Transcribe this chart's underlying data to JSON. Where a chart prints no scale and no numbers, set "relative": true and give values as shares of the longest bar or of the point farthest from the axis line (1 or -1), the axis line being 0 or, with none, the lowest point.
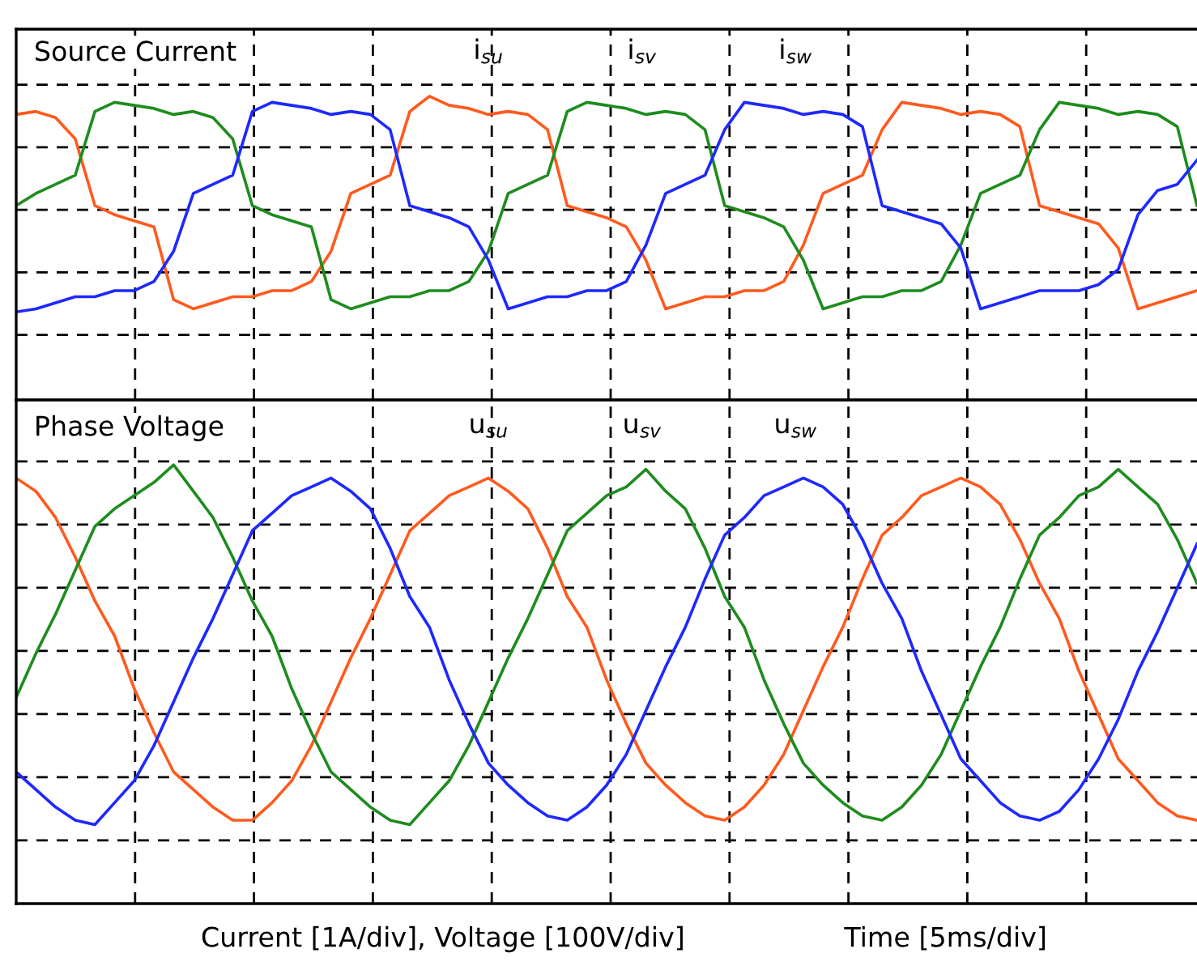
{
  "chart_data": [
    {
      "type": "line",
      "title": "Source Current",
      "relative": true,
      "grid": true,
      "tick_labels": false,
      "categories": [
        null,
        null,
        null,
        null,
        null,
        null,
        null,
        null,
        null,
        null,
        null,
        null,
        null,
        null,
        null,
        null,
        null,
        null,
        null,
        null,
        null,
        null,
        null,
        null,
        null,
        null,
        null,
        null,
        null,
        null,
        null,
        null,
        null,
        null,
        null,
        null,
        null,
        null,
        null,
        null,
        null,
        null,
        null,
        null,
        null,
        null,
        null,
        null,
        null,
        null,
        null,
        null,
        null,
        null,
        null,
        null,
        null,
        null,
        null,
        null,
        null
      ],
      "series": [
        {
          "name": "i$_{su}$",
          "color": "#ff5a1e",
          "values": [
            0.94,
            0.95,
            0.93,
            0.86,
            0.64,
            0.61,
            0.59,
            0.57,
            0.33,
            0.3,
            0.32,
            0.34,
            0.34,
            0.36,
            0.36,
            0.39,
            0.49,
            0.68,
            0.71,
            0.74,
            0.95,
            1.0,
            0.97,
            0.96,
            0.94,
            0.95,
            0.94,
            0.89,
            0.64,
            0.62,
            0.6,
            0.57,
            0.46,
            0.3,
            0.32,
            0.34,
            0.34,
            0.36,
            0.36,
            0.39,
            0.51,
            0.68,
            0.71,
            0.74,
            0.89,
            0.98,
            0.97,
            0.96,
            0.94,
            0.95,
            0.94,
            0.9,
            0.64,
            0.62,
            0.6,
            0.58,
            0.5,
            0.3,
            0.32,
            0.34,
            0.36
          ]
        },
        {
          "name": "i$_{sv}$",
          "color": "#1e8c1e",
          "values": [
            0.64,
            0.68,
            0.71,
            0.74,
            0.95,
            0.98,
            0.97,
            0.96,
            0.94,
            0.95,
            0.93,
            0.86,
            0.64,
            0.61,
            0.59,
            0.57,
            0.33,
            0.3,
            0.32,
            0.34,
            0.34,
            0.36,
            0.36,
            0.39,
            0.49,
            0.68,
            0.71,
            0.74,
            0.95,
            0.98,
            0.97,
            0.96,
            0.94,
            0.95,
            0.94,
            0.89,
            0.64,
            0.62,
            0.6,
            0.57,
            0.46,
            0.3,
            0.32,
            0.34,
            0.34,
            0.36,
            0.36,
            0.39,
            0.51,
            0.68,
            0.71,
            0.74,
            0.89,
            0.98,
            0.97,
            0.96,
            0.94,
            0.95,
            0.94,
            0.9,
            0.64
          ]
        },
        {
          "name": "i$_{sw}$",
          "color": "#1e28ff",
          "values": [
            0.29,
            0.3,
            0.32,
            0.34,
            0.34,
            0.36,
            0.36,
            0.39,
            0.49,
            0.68,
            0.71,
            0.74,
            0.95,
            0.98,
            0.97,
            0.96,
            0.94,
            0.95,
            0.94,
            0.89,
            0.64,
            0.62,
            0.6,
            0.57,
            0.46,
            0.3,
            0.32,
            0.34,
            0.34,
            0.36,
            0.36,
            0.39,
            0.51,
            0.68,
            0.71,
            0.74,
            0.89,
            0.98,
            0.97,
            0.96,
            0.94,
            0.95,
            0.94,
            0.9,
            0.64,
            0.62,
            0.6,
            0.58,
            0.5,
            0.3,
            0.32,
            0.34,
            0.36,
            0.36,
            0.36,
            0.38,
            0.43,
            0.61,
            0.69,
            0.71,
            0.79
          ]
        }
      ]
    },
    {
      "type": "line",
      "title": "Phase Voltage",
      "relative": true,
      "grid": true,
      "tick_labels": false,
      "categories": [
        null,
        null,
        null,
        null,
        null,
        null,
        null,
        null,
        null,
        null,
        null,
        null,
        null,
        null,
        null,
        null,
        null,
        null,
        null,
        null,
        null,
        null,
        null,
        null,
        null,
        null,
        null,
        null,
        null,
        null,
        null,
        null,
        null,
        null,
        null,
        null,
        null,
        null,
        null,
        null,
        null,
        null,
        null,
        null,
        null,
        null,
        null,
        null,
        null,
        null,
        null,
        null,
        null,
        null,
        null,
        null,
        null,
        null,
        null,
        null,
        null
      ],
      "series": [
        {
          "name": "u$_{su}$",
          "color": "#ff5a1e",
          "values": [
            0.97,
            0.94,
            0.88,
            0.79,
            0.69,
            0.61,
            0.49,
            0.39,
            0.3,
            0.26,
            0.22,
            0.19,
            0.19,
            0.23,
            0.28,
            0.36,
            0.46,
            0.56,
            0.65,
            0.75,
            0.85,
            0.89,
            0.93,
            0.95,
            0.97,
            0.94,
            0.9,
            0.81,
            0.7,
            0.63,
            0.51,
            0.41,
            0.32,
            0.27,
            0.23,
            0.2,
            0.19,
            0.22,
            0.27,
            0.34,
            0.44,
            0.54,
            0.63,
            0.74,
            0.84,
            0.88,
            0.93,
            0.95,
            0.97,
            0.95,
            0.91,
            0.83,
            0.73,
            0.65,
            0.53,
            0.43,
            0.33,
            0.28,
            0.23,
            0.2,
            0.19
          ]
        },
        {
          "name": "u$_{sv}$",
          "color": "#1e8c1e",
          "values": [
            0.47,
            0.57,
            0.66,
            0.76,
            0.86,
            0.9,
            0.93,
            0.96,
            1.0,
            0.94,
            0.88,
            0.79,
            0.69,
            0.61,
            0.49,
            0.39,
            0.3,
            0.26,
            0.22,
            0.19,
            0.18,
            0.23,
            0.28,
            0.36,
            0.46,
            0.56,
            0.65,
            0.75,
            0.85,
            0.89,
            0.93,
            0.95,
            0.99,
            0.94,
            0.9,
            0.81,
            0.7,
            0.63,
            0.51,
            0.41,
            0.32,
            0.27,
            0.23,
            0.2,
            0.19,
            0.22,
            0.27,
            0.34,
            0.44,
            0.54,
            0.63,
            0.74,
            0.84,
            0.88,
            0.93,
            0.95,
            0.99,
            0.95,
            0.91,
            0.83,
            0.73
          ]
        },
        {
          "name": "u$_{sw}$",
          "color": "#1e28ff",
          "values": [
            0.3,
            0.26,
            0.22,
            0.19,
            0.18,
            0.23,
            0.28,
            0.36,
            0.46,
            0.56,
            0.65,
            0.75,
            0.85,
            0.89,
            0.93,
            0.95,
            0.97,
            0.94,
            0.9,
            0.81,
            0.7,
            0.63,
            0.51,
            0.41,
            0.32,
            0.27,
            0.23,
            0.2,
            0.19,
            0.22,
            0.27,
            0.34,
            0.44,
            0.54,
            0.63,
            0.74,
            0.84,
            0.88,
            0.93,
            0.95,
            0.97,
            0.95,
            0.91,
            0.83,
            0.73,
            0.65,
            0.53,
            0.43,
            0.33,
            0.28,
            0.23,
            0.2,
            0.19,
            0.21,
            0.26,
            0.33,
            0.42,
            0.53,
            0.62,
            0.72,
            0.82
          ]
        }
      ],
      "annotations": [
        "Current [1A/div], Voltage [100V/div]",
        "Time [5ms/div]"
      ]
    }
  ]
}
